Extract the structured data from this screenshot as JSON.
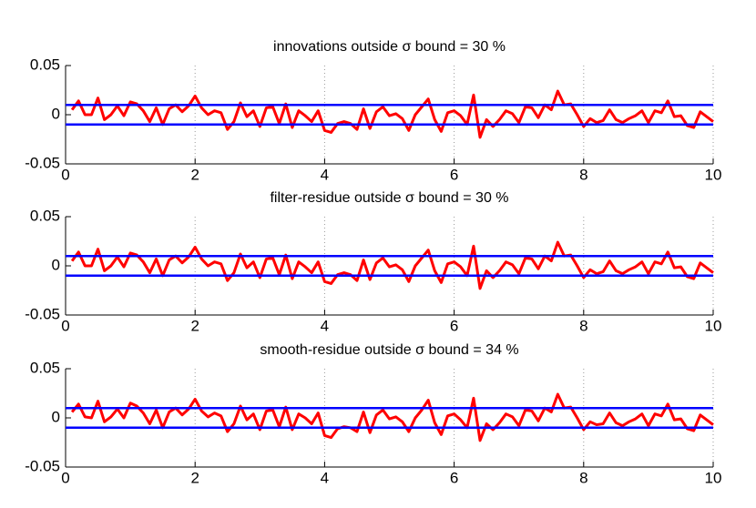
{
  "chart_data": [
    {
      "type": "line",
      "title": "innovations outside σ bound = 30 %",
      "x": [
        0.1,
        0.2,
        0.3,
        0.4,
        0.5,
        0.6,
        0.7,
        0.8,
        0.9,
        1.0,
        1.1,
        1.2,
        1.3,
        1.4,
        1.5,
        1.6,
        1.7,
        1.8,
        1.9,
        2.0,
        2.1,
        2.2,
        2.3,
        2.4,
        2.5,
        2.6,
        2.7,
        2.8,
        2.9,
        3.0,
        3.1,
        3.2,
        3.3,
        3.4,
        3.5,
        3.6,
        3.7,
        3.8,
        3.9,
        4.0,
        4.1,
        4.2,
        4.3,
        4.4,
        4.5,
        4.6,
        4.7,
        4.8,
        4.9,
        5.0,
        5.1,
        5.2,
        5.3,
        5.4,
        5.5,
        5.6,
        5.7,
        5.8,
        5.9,
        6.0,
        6.1,
        6.2,
        6.3,
        6.4,
        6.5,
        6.6,
        6.7,
        6.8,
        6.9,
        7.0,
        7.1,
        7.2,
        7.3,
        7.4,
        7.5,
        7.6,
        7.7,
        7.8,
        7.9,
        8.0,
        8.1,
        8.2,
        8.3,
        8.4,
        8.5,
        8.6,
        8.7,
        8.8,
        8.9,
        9.0,
        9.1,
        9.2,
        9.3,
        9.4,
        9.5,
        9.6,
        9.7,
        9.8,
        9.9,
        10
      ],
      "series": [
        {
          "color": "#ff0000",
          "values": [
            0.005,
            0.014,
            0,
            0,
            0.017,
            -0.005,
            0,
            0.009,
            -0.001,
            0.013,
            0.011,
            0.004,
            -0.007,
            0.007,
            -0.01,
            0.006,
            0.01,
            0.003,
            0.009,
            0.019,
            0.007,
            0,
            0.004,
            0.002,
            -0.015,
            -0.007,
            0.012,
            -0.002,
            0.004,
            -0.012,
            0.007,
            0.008,
            -0.009,
            0.011,
            -0.013,
            0.004,
            -0.001,
            -0.007,
            0.004,
            -0.016,
            -0.018,
            -0.009,
            -0.007,
            -0.009,
            -0.015,
            0.006,
            -0.014,
            0.003,
            0.008,
            -0.001,
            0.001,
            -0.004,
            -0.016,
            0,
            0.008,
            0.016,
            -0.005,
            -0.017,
            0.002,
            0.004,
            -0.001,
            -0.01,
            0.02,
            -0.023,
            -0.005,
            -0.012,
            -0.005,
            0.004,
            0.001,
            -0.008,
            0.008,
            0.007,
            -0.003,
            0.01,
            0.005,
            0.024,
            0.01,
            0.011,
            0,
            -0.012,
            -0.004,
            -0.008,
            -0.006,
            0.005,
            -0.005,
            -0.008,
            -0.004,
            -0.001,
            0.004,
            -0.008,
            0.004,
            0.002,
            0.014,
            -0.002,
            -0.001,
            -0.011,
            -0.013,
            0.003,
            -0.002,
            -0.007
          ]
        },
        {
          "color": "#0000ff",
          "x": [
            0,
            10
          ],
          "values": [
            0.01,
            0.01
          ]
        },
        {
          "color": "#0000ff",
          "x": [
            0,
            10
          ],
          "values": [
            -0.01,
            -0.01
          ]
        }
      ],
      "xlim": [
        0,
        10
      ],
      "xticks": [
        0,
        2,
        4,
        6,
        8,
        10
      ],
      "ylim": [
        -0.05,
        0.05
      ],
      "yticks": [
        -0.05,
        0,
        0.05
      ],
      "grid": "x"
    },
    {
      "type": "line",
      "title": "filter-residue outside σ bound = 30 %",
      "x": [
        0.1,
        0.2,
        0.3,
        0.4,
        0.5,
        0.6,
        0.7,
        0.8,
        0.9,
        1.0,
        1.1,
        1.2,
        1.3,
        1.4,
        1.5,
        1.6,
        1.7,
        1.8,
        1.9,
        2.0,
        2.1,
        2.2,
        2.3,
        2.4,
        2.5,
        2.6,
        2.7,
        2.8,
        2.9,
        3.0,
        3.1,
        3.2,
        3.3,
        3.4,
        3.5,
        3.6,
        3.7,
        3.8,
        3.9,
        4.0,
        4.1,
        4.2,
        4.3,
        4.4,
        4.5,
        4.6,
        4.7,
        4.8,
        4.9,
        5.0,
        5.1,
        5.2,
        5.3,
        5.4,
        5.5,
        5.6,
        5.7,
        5.8,
        5.9,
        6.0,
        6.1,
        6.2,
        6.3,
        6.4,
        6.5,
        6.6,
        6.7,
        6.8,
        6.9,
        7.0,
        7.1,
        7.2,
        7.3,
        7.4,
        7.5,
        7.6,
        7.7,
        7.8,
        7.9,
        8.0,
        8.1,
        8.2,
        8.3,
        8.4,
        8.5,
        8.6,
        8.7,
        8.8,
        8.9,
        9.0,
        9.1,
        9.2,
        9.3,
        9.4,
        9.5,
        9.6,
        9.7,
        9.8,
        9.9,
        10
      ],
      "series": [
        {
          "color": "#ff0000",
          "values": [
            0.005,
            0.014,
            0,
            0,
            0.017,
            -0.005,
            0,
            0.009,
            -0.001,
            0.013,
            0.011,
            0.004,
            -0.007,
            0.007,
            -0.01,
            0.006,
            0.01,
            0.003,
            0.009,
            0.019,
            0.007,
            0,
            0.004,
            0.002,
            -0.015,
            -0.007,
            0.012,
            -0.002,
            0.004,
            -0.012,
            0.007,
            0.008,
            -0.009,
            0.011,
            -0.013,
            0.004,
            -0.001,
            -0.007,
            0.004,
            -0.016,
            -0.018,
            -0.009,
            -0.007,
            -0.009,
            -0.015,
            0.006,
            -0.014,
            0.003,
            0.008,
            -0.001,
            0.001,
            -0.004,
            -0.016,
            0,
            0.008,
            0.016,
            -0.005,
            -0.017,
            0.002,
            0.004,
            -0.001,
            -0.01,
            0.02,
            -0.023,
            -0.005,
            -0.012,
            -0.005,
            0.004,
            0.001,
            -0.008,
            0.008,
            0.007,
            -0.003,
            0.01,
            0.005,
            0.024,
            0.01,
            0.011,
            0,
            -0.012,
            -0.004,
            -0.008,
            -0.006,
            0.005,
            -0.005,
            -0.008,
            -0.004,
            -0.001,
            0.004,
            -0.008,
            0.004,
            0.002,
            0.014,
            -0.002,
            -0.001,
            -0.011,
            -0.013,
            0.003,
            -0.002,
            -0.007
          ]
        },
        {
          "color": "#0000ff",
          "x": [
            0,
            10
          ],
          "values": [
            0.01,
            0.01
          ]
        },
        {
          "color": "#0000ff",
          "x": [
            0,
            10
          ],
          "values": [
            -0.01,
            -0.01
          ]
        }
      ],
      "xlim": [
        0,
        10
      ],
      "xticks": [
        0,
        2,
        4,
        6,
        8,
        10
      ],
      "ylim": [
        -0.05,
        0.05
      ],
      "yticks": [
        -0.05,
        0,
        0.05
      ],
      "grid": "x"
    },
    {
      "type": "line",
      "title": "smooth-residue outside σ bound = 34 %",
      "x": [
        0.1,
        0.2,
        0.3,
        0.4,
        0.5,
        0.6,
        0.7,
        0.8,
        0.9,
        1.0,
        1.1,
        1.2,
        1.3,
        1.4,
        1.5,
        1.6,
        1.7,
        1.8,
        1.9,
        2.0,
        2.1,
        2.2,
        2.3,
        2.4,
        2.5,
        2.6,
        2.7,
        2.8,
        2.9,
        3.0,
        3.1,
        3.2,
        3.3,
        3.4,
        3.5,
        3.6,
        3.7,
        3.8,
        3.9,
        4.0,
        4.1,
        4.2,
        4.3,
        4.4,
        4.5,
        4.6,
        4.7,
        4.8,
        4.9,
        5.0,
        5.1,
        5.2,
        5.3,
        5.4,
        5.5,
        5.6,
        5.7,
        5.8,
        5.9,
        6.0,
        6.1,
        6.2,
        6.3,
        6.4,
        6.5,
        6.6,
        6.7,
        6.8,
        6.9,
        7.0,
        7.1,
        7.2,
        7.3,
        7.4,
        7.5,
        7.6,
        7.7,
        7.8,
        7.9,
        8.0,
        8.1,
        8.2,
        8.3,
        8.4,
        8.5,
        8.6,
        8.7,
        8.8,
        8.9,
        9.0,
        9.1,
        9.2,
        9.3,
        9.4,
        9.5,
        9.6,
        9.7,
        9.8,
        9.9,
        10
      ],
      "series": [
        {
          "color": "#ff0000",
          "values": [
            0.006,
            0.014,
            0.001,
            0,
            0.017,
            -0.004,
            0.001,
            0.009,
            0,
            0.015,
            0.012,
            0.005,
            -0.006,
            0.008,
            -0.01,
            0.006,
            0.01,
            0.003,
            0.009,
            0.019,
            0.007,
            0.001,
            0.005,
            0.002,
            -0.014,
            -0.006,
            0.012,
            -0.002,
            0.004,
            -0.012,
            0.007,
            0.008,
            -0.009,
            0.011,
            -0.012,
            0.004,
            0,
            -0.006,
            0.005,
            -0.018,
            -0.02,
            -0.011,
            -0.009,
            -0.01,
            -0.014,
            0.006,
            -0.015,
            0.003,
            0.008,
            -0.001,
            0.001,
            -0.004,
            -0.014,
            0,
            0.008,
            0.018,
            -0.005,
            -0.017,
            0.002,
            0.004,
            -0.002,
            -0.01,
            0.02,
            -0.023,
            -0.006,
            -0.012,
            -0.005,
            0.004,
            0.001,
            -0.008,
            0.008,
            0.007,
            -0.003,
            0.01,
            0.006,
            0.024,
            0.01,
            0.011,
            0,
            -0.012,
            -0.004,
            -0.007,
            -0.006,
            0.005,
            -0.005,
            -0.008,
            -0.004,
            -0.001,
            0.004,
            -0.008,
            0.004,
            0.002,
            0.014,
            -0.002,
            -0.001,
            -0.011,
            -0.013,
            0.003,
            -0.002,
            -0.007
          ]
        },
        {
          "color": "#0000ff",
          "x": [
            0,
            10
          ],
          "values": [
            0.01,
            0.01
          ]
        },
        {
          "color": "#0000ff",
          "x": [
            0,
            10
          ],
          "values": [
            -0.01,
            -0.01
          ]
        }
      ],
      "xlim": [
        0,
        10
      ],
      "xticks": [
        0,
        2,
        4,
        6,
        8,
        10
      ],
      "ylim": [
        -0.05,
        0.05
      ],
      "yticks": [
        -0.05,
        0,
        0.05
      ],
      "grid": "x"
    }
  ]
}
